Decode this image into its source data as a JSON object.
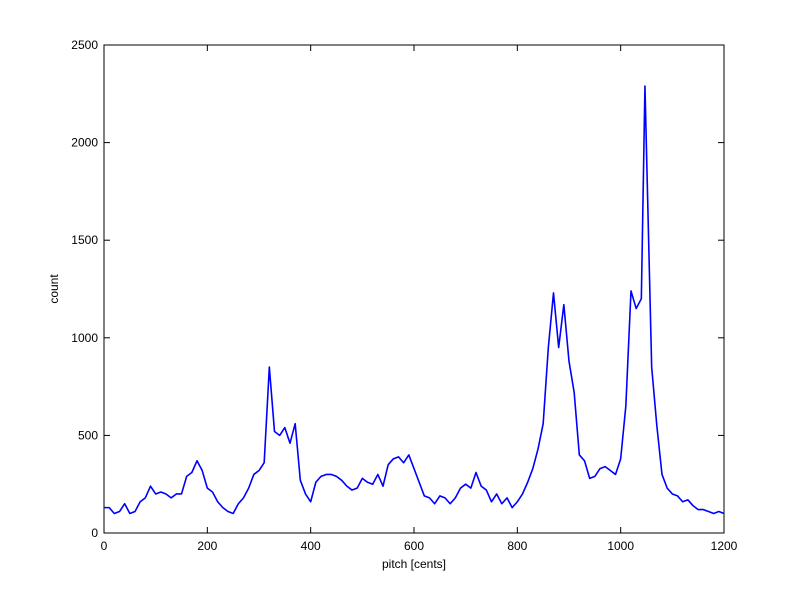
{
  "chart_data": {
    "type": "line",
    "x_label": "pitch [cents]",
    "y_label": "count",
    "x": [
      0,
      10,
      20,
      30,
      40,
      50,
      60,
      70,
      80,
      90,
      100,
      110,
      120,
      130,
      140,
      150,
      160,
      170,
      180,
      190,
      200,
      210,
      220,
      230,
      240,
      250,
      260,
      270,
      280,
      290,
      300,
      310,
      320,
      330,
      340,
      350,
      360,
      370,
      380,
      390,
      400,
      410,
      420,
      430,
      440,
      450,
      460,
      470,
      480,
      490,
      500,
      510,
      520,
      530,
      540,
      550,
      560,
      570,
      580,
      590,
      600,
      610,
      620,
      630,
      640,
      650,
      660,
      670,
      680,
      690,
      700,
      710,
      720,
      730,
      740,
      750,
      760,
      770,
      780,
      790,
      800,
      810,
      820,
      830,
      840,
      850,
      860,
      870,
      880,
      890,
      900,
      910,
      920,
      930,
      940,
      950,
      960,
      970,
      980,
      990,
      1000,
      1010,
      1020,
      1030,
      1040,
      1047,
      1060,
      1070,
      1080,
      1090,
      1100,
      1110,
      1120,
      1130,
      1140,
      1150,
      1160,
      1170,
      1180,
      1190,
      1200
    ],
    "series": [
      {
        "color": "#0000ff",
        "values": [
          130,
          130,
          100,
          110,
          150,
          100,
          110,
          160,
          180,
          240,
          200,
          210,
          200,
          180,
          200,
          200,
          290,
          310,
          370,
          320,
          230,
          210,
          160,
          130,
          110,
          100,
          150,
          180,
          230,
          300,
          320,
          360,
          850,
          520,
          500,
          540,
          460,
          560,
          270,
          200,
          160,
          260,
          290,
          300,
          300,
          290,
          270,
          240,
          220,
          230,
          280,
          260,
          250,
          300,
          240,
          350,
          380,
          390,
          360,
          400,
          330,
          260,
          190,
          180,
          150,
          190,
          180,
          150,
          180,
          230,
          250,
          230,
          310,
          240,
          220,
          160,
          200,
          150,
          180,
          130,
          160,
          200,
          260,
          330,
          430,
          560,
          950,
          1230,
          950,
          1170,
          880,
          720,
          400,
          370,
          280,
          290,
          330,
          340,
          320,
          300,
          380,
          650,
          1240,
          1150,
          1200,
          2290,
          850,
          550,
          300,
          230,
          200,
          190,
          160,
          170,
          140,
          120,
          120,
          110,
          100,
          110,
          100
        ]
      }
    ],
    "xlim": [
      0,
      1200
    ],
    "xticks": [
      0,
      200,
      400,
      600,
      800,
      1000,
      1200
    ],
    "ylim": [
      0,
      2500
    ],
    "yticks": [
      0,
      500,
      1000,
      1500,
      2000,
      2500
    ]
  }
}
